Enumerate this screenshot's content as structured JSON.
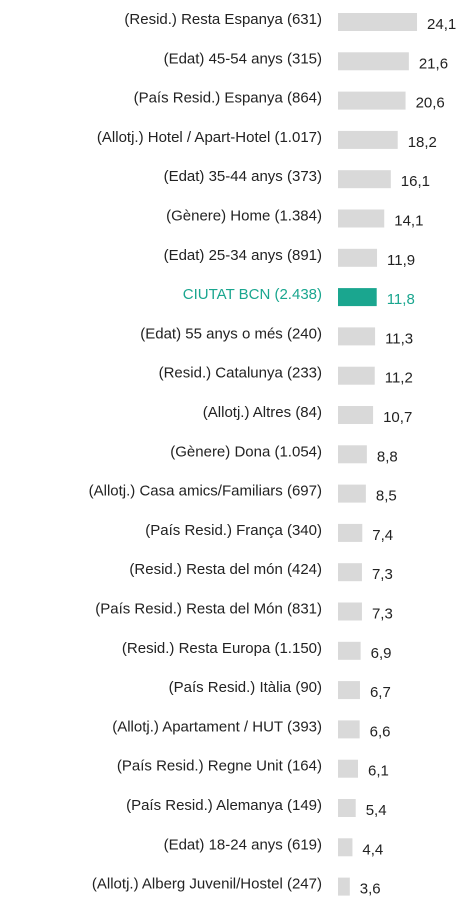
{
  "chart_data": {
    "type": "bar",
    "orientation": "horizontal",
    "categories": [
      "(Resid.) Resta Espanya (631)",
      "(Edat) 45-54 anys (315)",
      "(País Resid.) Espanya (864)",
      "(Allotj.) Hotel / Apart-Hotel (1.017)",
      "(Edat) 35-44 anys (373)",
      "(Gènere) Home (1.384)",
      "(Edat) 25-34 anys (891)",
      "CIUTAT BCN (2.438)",
      "(Edat) 55 anys o més (240)",
      "(Resid.) Catalunya (233)",
      "(Allotj.) Altres (84)",
      "(Gènere) Dona (1.054)",
      "(Allotj.) Casa amics/Familiars (697)",
      "(País Resid.) França (340)",
      "(Resid.) Resta del món (424)",
      "(País Resid.) Resta del Món (831)",
      "(Resid.) Resta Europa (1.150)",
      "(País Resid.) Itàlia (90)",
      "(Allotj.) Apartament / HUT (393)",
      "(País Resid.) Regne Unit (164)",
      "(País Resid.) Alemanya (149)",
      "(Edat) 18-24 anys (619)",
      "(Allotj.) Alberg Juvenil/Hostel (247)"
    ],
    "values": [
      24.1,
      21.6,
      20.6,
      18.2,
      16.1,
      14.1,
      11.9,
      11.8,
      11.3,
      11.2,
      10.7,
      8.8,
      8.5,
      7.4,
      7.3,
      7.3,
      6.9,
      6.7,
      6.6,
      6.1,
      5.4,
      4.4,
      3.6
    ],
    "value_labels": [
      "24,1",
      "21,6",
      "20,6",
      "18,2",
      "16,1",
      "14,1",
      "11,9",
      "11,8",
      "11,3",
      "11,2",
      "10,7",
      "8,8",
      "8,5",
      "7,4",
      "7,3",
      "7,3",
      "6,9",
      "6,7",
      "6,6",
      "6,1",
      "5,4",
      "4,4",
      "3,6"
    ],
    "color": "#d9d9d9",
    "highlight_index": 7,
    "highlight_color": "#1aa68f"
  }
}
